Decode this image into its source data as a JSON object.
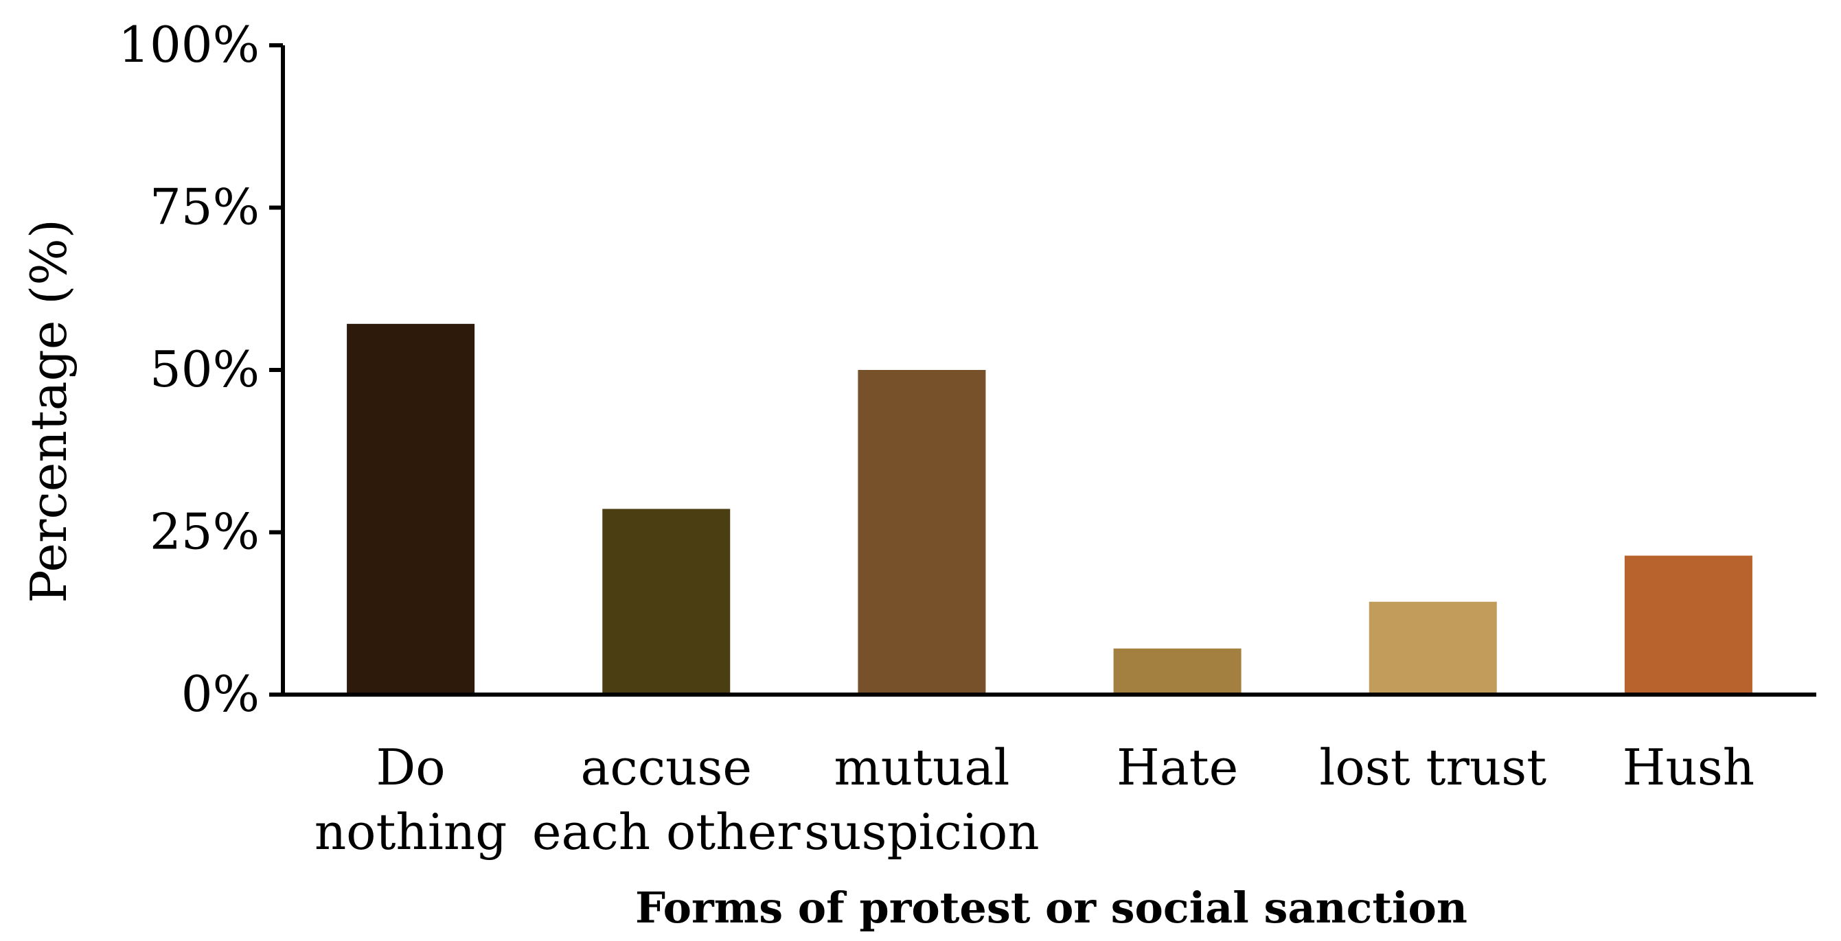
{
  "chart_data": {
    "type": "bar",
    "categories": [
      [
        "Do",
        "nothing"
      ],
      [
        "accuse",
        "each other"
      ],
      [
        "mutual",
        "suspicion"
      ],
      [
        "Hate"
      ],
      [
        "lost trust"
      ],
      [
        "Hush"
      ]
    ],
    "values": [
      57.1,
      28.6,
      50.0,
      7.1,
      14.3,
      21.4
    ],
    "colors": [
      "#2e1a0b",
      "#4b3e12",
      "#77512a",
      "#a3803f",
      "#c19c5a",
      "#b8622e"
    ],
    "title": "",
    "xlabel": "Forms of protest or social sanction",
    "ylabel": "Percentage (%)",
    "ylim": [
      0,
      100
    ],
    "yticks": [
      {
        "value": 0,
        "label": "0%"
      },
      {
        "value": 25,
        "label": "25%"
      },
      {
        "value": 50,
        "label": "50%"
      },
      {
        "value": 75,
        "label": "75%"
      },
      {
        "value": 100,
        "label": "100%"
      }
    ],
    "grid": false,
    "legend": "none"
  }
}
